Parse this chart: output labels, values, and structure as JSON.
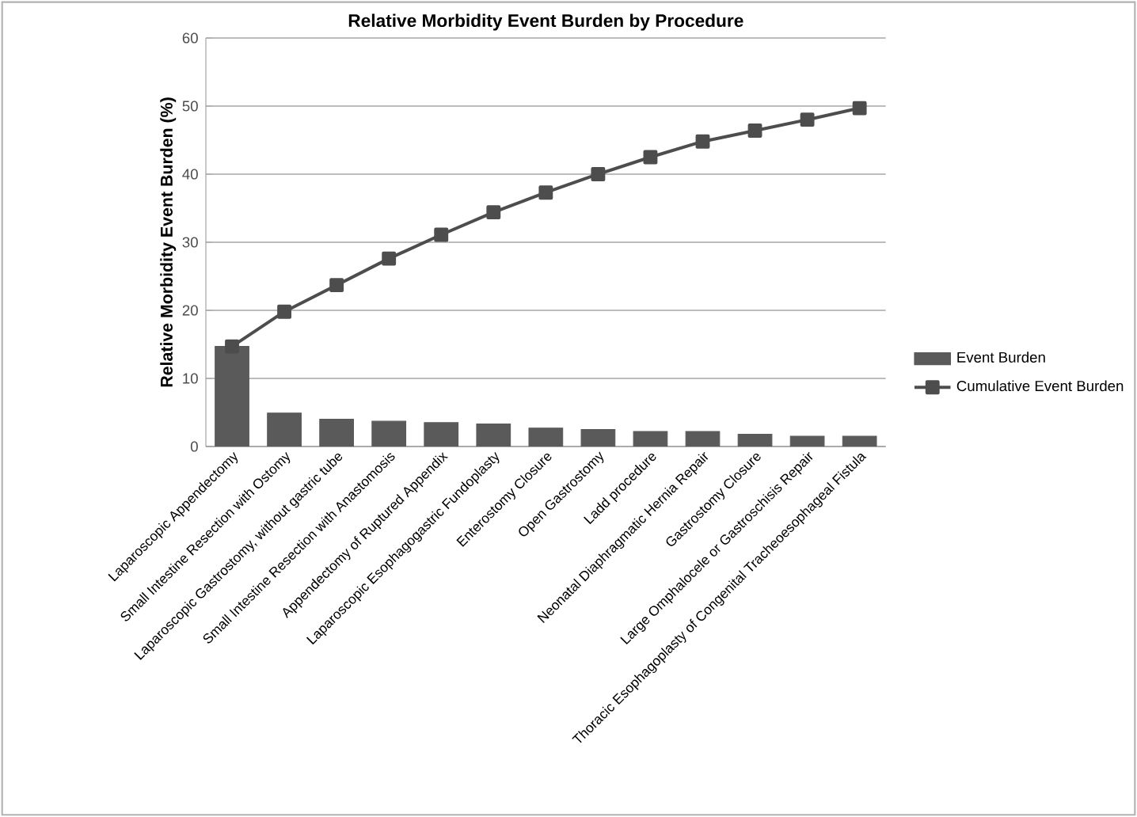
{
  "chart_data": {
    "type": "bar",
    "title": "Relative Morbidity Event Burden by Procedure",
    "ylabel": "Relative Morbidity Event Burden (%)",
    "categories": [
      "Laparoscopic Appendectomy",
      "Small Intestine Resection with Ostomy",
      "Laparoscopic Gastrostomy, without gastric tube",
      "Small Intestine Resection with Anastomosis",
      "Appendectomy of Ruptured Appendix",
      "Laparoscopic Esophagogastric Fundoplasty",
      "Enterostomy Closure",
      "Open Gastrostomy",
      "Ladd procedure",
      "Neonatal Diaphragmatic Hernia Repair",
      "Gastrostomy Closure",
      "Large Omphalocele or Gastroschisis Repair",
      "Thoracic Esophagoplasty of Congenital Tracheoesophageal Fistula"
    ],
    "series": [
      {
        "name": "Event Burden",
        "color": "#5a5a5a",
        "values": [
          14.7,
          4.9,
          4.0,
          3.7,
          3.5,
          3.3,
          2.7,
          2.5,
          2.2,
          2.2,
          1.8,
          1.5,
          1.5
        ]
      },
      {
        "name": "Cumulative Event Burden",
        "type": "line",
        "color": "#4d4d4d",
        "values": [
          14.7,
          19.8,
          23.7,
          27.6,
          31.1,
          34.4,
          37.3,
          40.0,
          42.5,
          44.8,
          46.4,
          48.0,
          49.7
        ]
      }
    ],
    "ylim": [
      0,
      60
    ],
    "yticks": [
      0,
      10,
      20,
      30,
      40,
      50,
      60
    ],
    "grid": "y",
    "legend": "right",
    "marker": "square"
  }
}
